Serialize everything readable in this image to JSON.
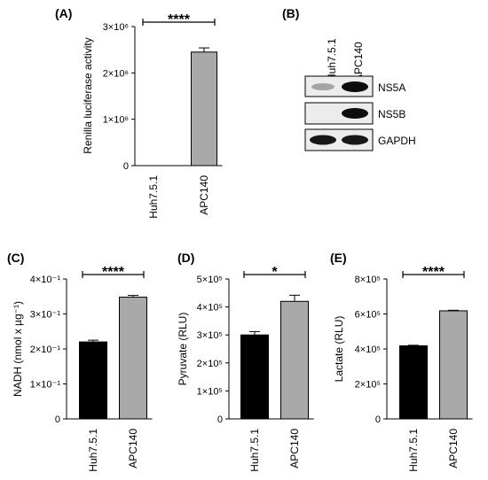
{
  "figure": {
    "panels": [
      {
        "letter": "(A)"
      },
      {
        "letter": "(B)"
      },
      {
        "letter": "(C)"
      },
      {
        "letter": "(D)"
      },
      {
        "letter": "(E)"
      }
    ]
  },
  "western_blot": {
    "lanes": [
      "Huh7.5.1",
      "APC140"
    ],
    "bands": [
      {
        "label": "NS5A",
        "intensity": [
          0.3,
          0.95
        ]
      },
      {
        "label": "NS5B",
        "intensity": [
          0.0,
          0.95
        ]
      },
      {
        "label": "GAPDH",
        "intensity": [
          0.9,
          0.9
        ]
      }
    ]
  },
  "chart_data": [
    {
      "panel": "(A)",
      "type": "bar",
      "categories": [
        "Huh7.5.1",
        "APC140"
      ],
      "values": [
        0,
        2450000
      ],
      "errors": [
        0,
        90000
      ],
      "colors": [
        "#000000",
        "#a9a9a9"
      ],
      "ylabel": "Renilla luciferase activity",
      "ylim": [
        0,
        3000000
      ],
      "yticks": [
        0,
        1000000,
        2000000,
        3000000
      ],
      "ytick_labels": [
        "0",
        "1×10⁶",
        "2×10⁶",
        "3×10⁶"
      ],
      "significance": "****",
      "grid": false
    },
    {
      "panel": "(C)",
      "type": "bar",
      "categories": [
        "Huh7.5.1",
        "APC140"
      ],
      "values": [
        0.22,
        0.348
      ],
      "errors": [
        0.005,
        0.005
      ],
      "colors": [
        "#000000",
        "#a9a9a9"
      ],
      "ylabel": "NADH (nmol x µg⁻¹)",
      "ylim": [
        0,
        0.4
      ],
      "yticks": [
        0,
        0.1,
        0.2,
        0.3,
        0.4
      ],
      "ytick_labels": [
        "0",
        "1×10⁻¹",
        "2×10⁻¹",
        "3×10⁻¹",
        "4×10⁻¹"
      ],
      "significance": "****",
      "grid": false
    },
    {
      "panel": "(D)",
      "type": "bar",
      "categories": [
        "Huh7.5.1",
        "APC140"
      ],
      "values": [
        300000,
        420000
      ],
      "errors": [
        12000,
        22000
      ],
      "colors": [
        "#000000",
        "#a9a9a9"
      ],
      "ylabel": "Pyruvate (RLU)",
      "ylim": [
        0,
        500000
      ],
      "yticks": [
        0,
        100000,
        200000,
        300000,
        400000,
        500000
      ],
      "ytick_labels": [
        "0",
        "1×10⁵",
        "2×10⁵",
        "3×10⁵",
        "4×10⁵",
        "5×10⁵"
      ],
      "significance": "*",
      "grid": false
    },
    {
      "panel": "(E)",
      "type": "bar",
      "categories": [
        "Huh7.5.1",
        "APC140"
      ],
      "values": [
        418000,
        618000
      ],
      "errors": [
        3000,
        3000
      ],
      "colors": [
        "#000000",
        "#a9a9a9"
      ],
      "ylabel": "Lactate (RLU)",
      "ylim": [
        0,
        800000
      ],
      "yticks": [
        0,
        200000,
        400000,
        600000,
        800000
      ],
      "ytick_labels": [
        "0",
        "2×10⁵",
        "4×10⁵",
        "6×10⁵",
        "8×10⁵"
      ],
      "significance": "****",
      "grid": false
    }
  ]
}
